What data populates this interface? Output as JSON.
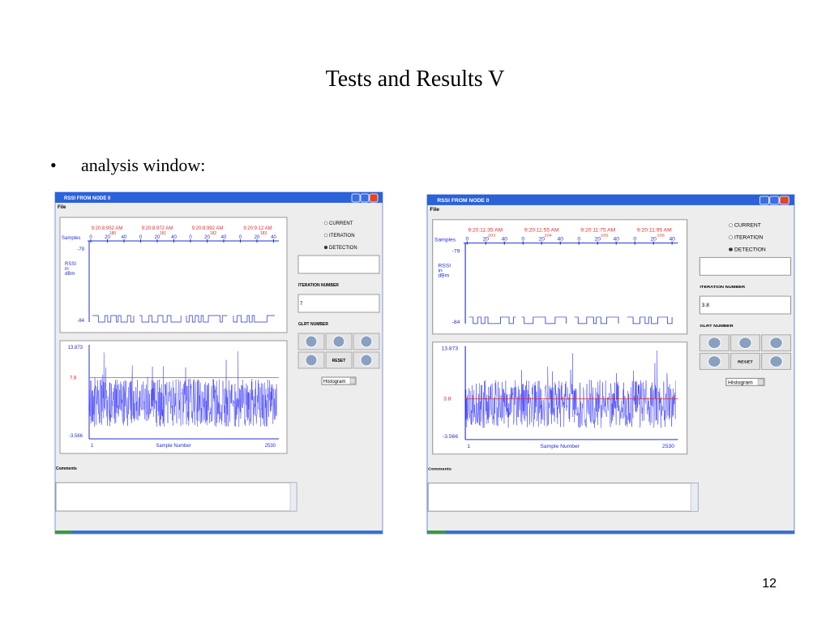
{
  "slide": {
    "title": "Tests and Results V",
    "bullet": "analysis window:",
    "page_number": "12"
  },
  "windows": [
    {
      "window_title": "RSSI FROM NODE 0",
      "menu": "File",
      "top_plot": {
        "x_label": "Samples",
        "timestamps": [
          "9:20:8:952 AM",
          "9:20:8:972 AM",
          "9:20:8:992 AM",
          "9:20:9:12 AM"
        ],
        "sample_numbers": [
          "180",
          "181",
          "182",
          "183"
        ],
        "tick_labels": [
          "0",
          "20",
          "40",
          "0",
          "20",
          "40",
          "0",
          "20",
          "40",
          "0",
          "20",
          "40"
        ],
        "y_label": [
          "RSSI",
          "in",
          "dBm"
        ],
        "y_top": "-79",
        "y_bottom": "-84"
      },
      "bottom_plot": {
        "y_max": "13.873",
        "y_min": "-3.566",
        "threshold": "7.8",
        "x_start": "1",
        "x_label": "Sample Number",
        "x_end": "2530"
      },
      "radio": [
        "CURRENT",
        "ITERATION",
        "DETECTION"
      ],
      "iteration_label": "ITERATION NUMBER",
      "iteration_value": "7",
      "glrt_label": "GLRT NUMBER",
      "reset": "RESET",
      "select": "Histogram",
      "comments": "Comments"
    },
    {
      "window_title": "RSSI FROM NODE 0",
      "menu": "File",
      "top_plot": {
        "x_label": "Samples",
        "timestamps": [
          "9:20:11:35 AM",
          "9:20:11:55 AM",
          "9:20:11:75 AM",
          "9:20:11:95 AM"
        ],
        "sample_numbers": [
          "203",
          "204",
          "205",
          "206"
        ],
        "tick_labels": [
          "0",
          "20",
          "40",
          "0",
          "20",
          "40",
          "0",
          "20",
          "40",
          "0",
          "20",
          "40"
        ],
        "y_label": [
          "RSSI",
          "in",
          "dBm"
        ],
        "y_top": "-79",
        "y_bottom": "-84"
      },
      "bottom_plot": {
        "y_max": "13.873",
        "y_min": "-3.566",
        "threshold": "3.8",
        "x_start": "1",
        "x_label": "Sample Number",
        "x_end": "2530"
      },
      "radio": [
        "CURRENT",
        "ITERATION",
        "DETECTION"
      ],
      "iteration_label": "ITERATION NUMBER",
      "iteration_value": "3.8",
      "glrt_label": "GLRT NUMBER",
      "reset": "RESET",
      "select": "Histogram",
      "comments": "Comments"
    }
  ]
}
